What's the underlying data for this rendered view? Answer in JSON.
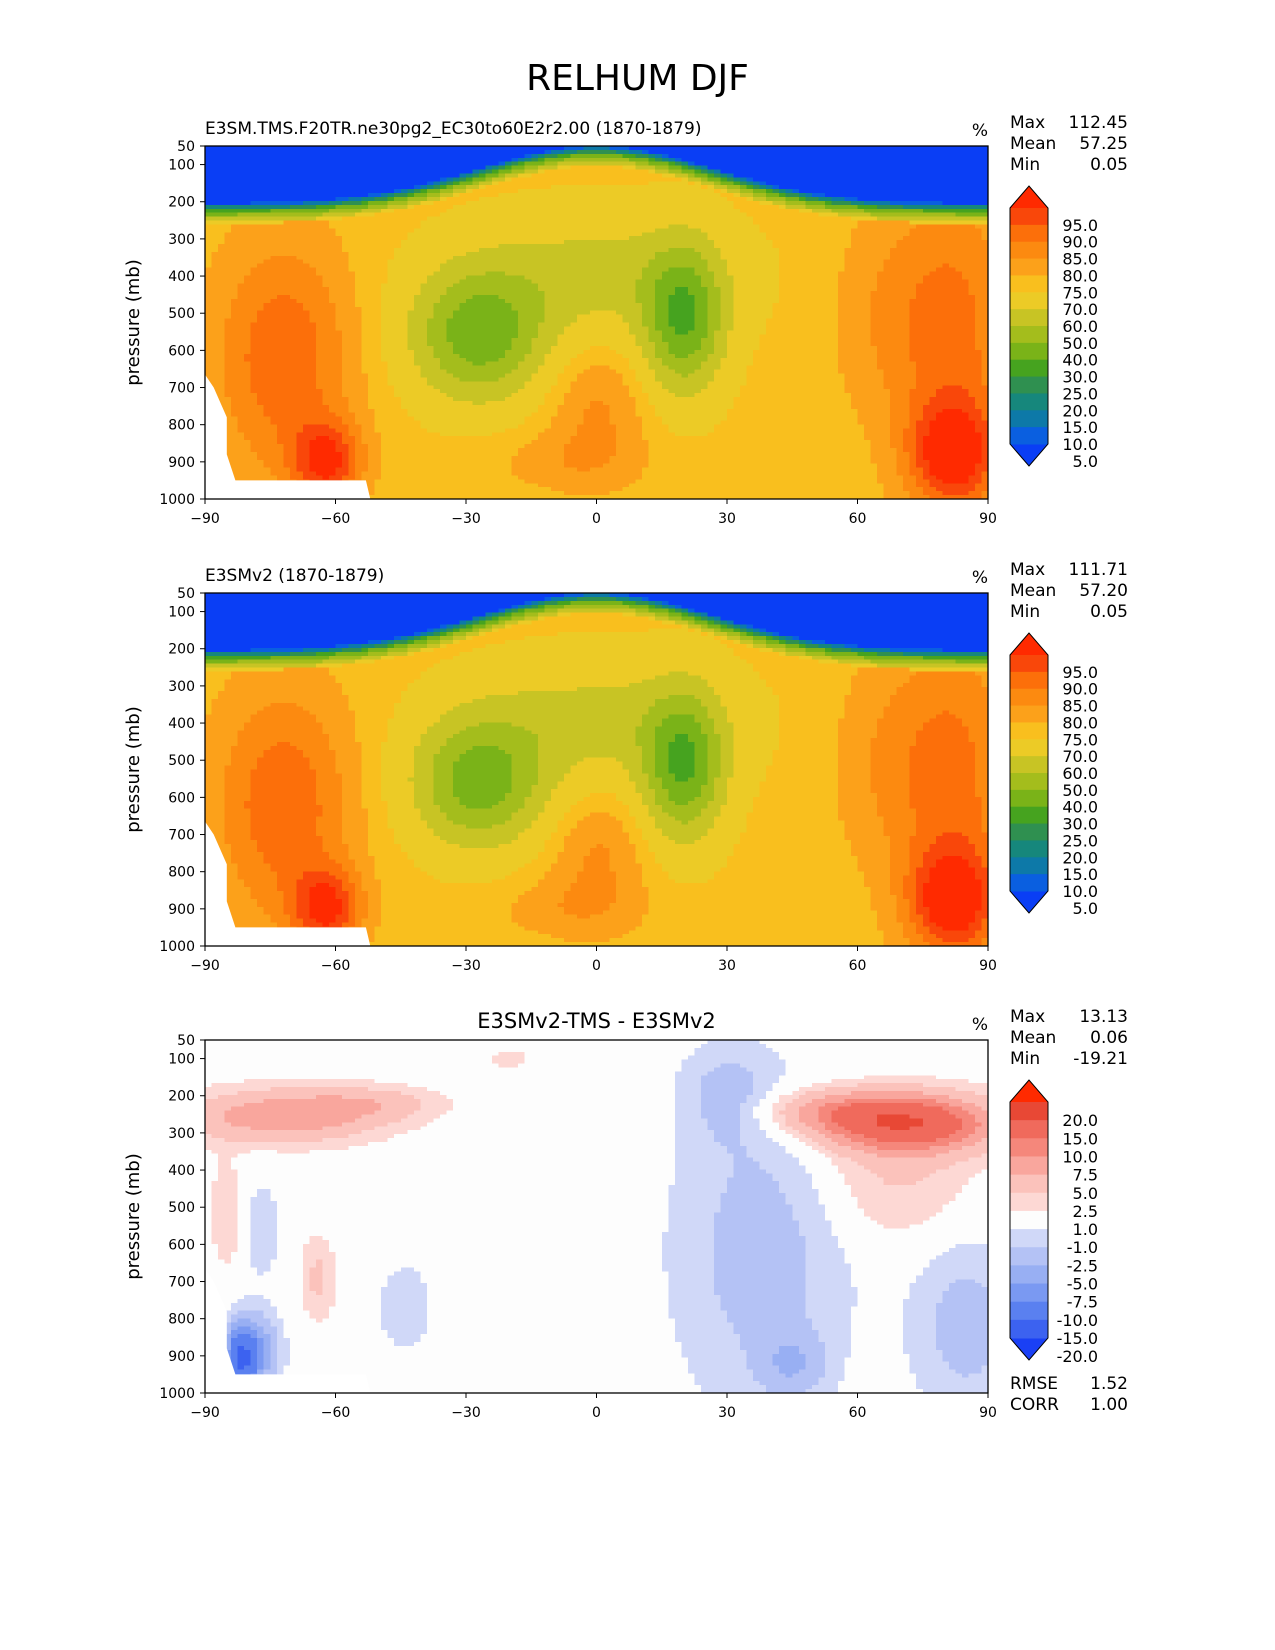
{
  "figure_title": "RELHUM DJF",
  "chart_data": [
    {
      "type": "heatmap",
      "panel": "test",
      "title": "E3SM.TMS.F20TR.ne30pg2_EC30to60E2r2.00 (1870-1879)",
      "units": "%",
      "xlabel": "",
      "ylabel": "pressure (mb)",
      "xlim": [
        -90,
        90
      ],
      "ylim": [
        1000,
        50
      ],
      "x_ticks": [
        "−90",
        "−60",
        "−30",
        "0",
        "30",
        "60",
        "90"
      ],
      "y_ticks": [
        "50",
        "100",
        "200",
        "300",
        "400",
        "500",
        "600",
        "700",
        "800",
        "900",
        "1000"
      ],
      "stats": [
        {
          "label": "Max",
          "value": "112.45"
        },
        {
          "label": "Mean",
          "value": "57.25"
        },
        {
          "label": "Min",
          "value": "0.05"
        }
      ],
      "colorbar_levels": [
        "95.0",
        "90.0",
        "85.0",
        "80.0",
        "75.0",
        "70.0",
        "60.0",
        "50.0",
        "40.0",
        "30.0",
        "25.0",
        "20.0",
        "15.0",
        "10.0",
        "5.0"
      ]
    },
    {
      "type": "heatmap",
      "panel": "reference",
      "title": "E3SMv2 (1870-1879)",
      "units": "%",
      "xlabel": "",
      "ylabel": "pressure (mb)",
      "xlim": [
        -90,
        90
      ],
      "ylim": [
        1000,
        50
      ],
      "x_ticks": [
        "−90",
        "−60",
        "−30",
        "0",
        "30",
        "60",
        "90"
      ],
      "y_ticks": [
        "50",
        "100",
        "200",
        "300",
        "400",
        "500",
        "600",
        "700",
        "800",
        "900",
        "1000"
      ],
      "stats": [
        {
          "label": "Max",
          "value": "111.71"
        },
        {
          "label": "Mean",
          "value": "57.20"
        },
        {
          "label": "Min",
          "value": "0.05"
        }
      ],
      "colorbar_levels": [
        "95.0",
        "90.0",
        "85.0",
        "80.0",
        "75.0",
        "70.0",
        "60.0",
        "50.0",
        "40.0",
        "30.0",
        "25.0",
        "20.0",
        "15.0",
        "10.0",
        "5.0"
      ]
    },
    {
      "type": "heatmap",
      "panel": "difference",
      "title": "E3SMv2-TMS - E3SMv2",
      "units": "%",
      "xlabel": "",
      "ylabel": "pressure (mb)",
      "xlim": [
        -90,
        90
      ],
      "ylim": [
        1000,
        50
      ],
      "x_ticks": [
        "−90",
        "−60",
        "−30",
        "0",
        "30",
        "60",
        "90"
      ],
      "y_ticks": [
        "50",
        "100",
        "200",
        "300",
        "400",
        "500",
        "600",
        "700",
        "800",
        "900",
        "1000"
      ],
      "stats": [
        {
          "label": "Max",
          "value": "13.13"
        },
        {
          "label": "Mean",
          "value": "0.06"
        },
        {
          "label": "Min",
          "value": "-19.21"
        }
      ],
      "colorbar_levels": [
        "20.0",
        "15.0",
        "10.0",
        "7.5",
        "5.0",
        "2.5",
        "1.0",
        "-1.0",
        "-2.5",
        "-5.0",
        "-7.5",
        "-10.0",
        "-15.0",
        "-20.0"
      ],
      "footer_stats": [
        {
          "label": "RMSE",
          "value": "1.52"
        },
        {
          "label": "CORR",
          "value": "1.00"
        }
      ]
    }
  ]
}
